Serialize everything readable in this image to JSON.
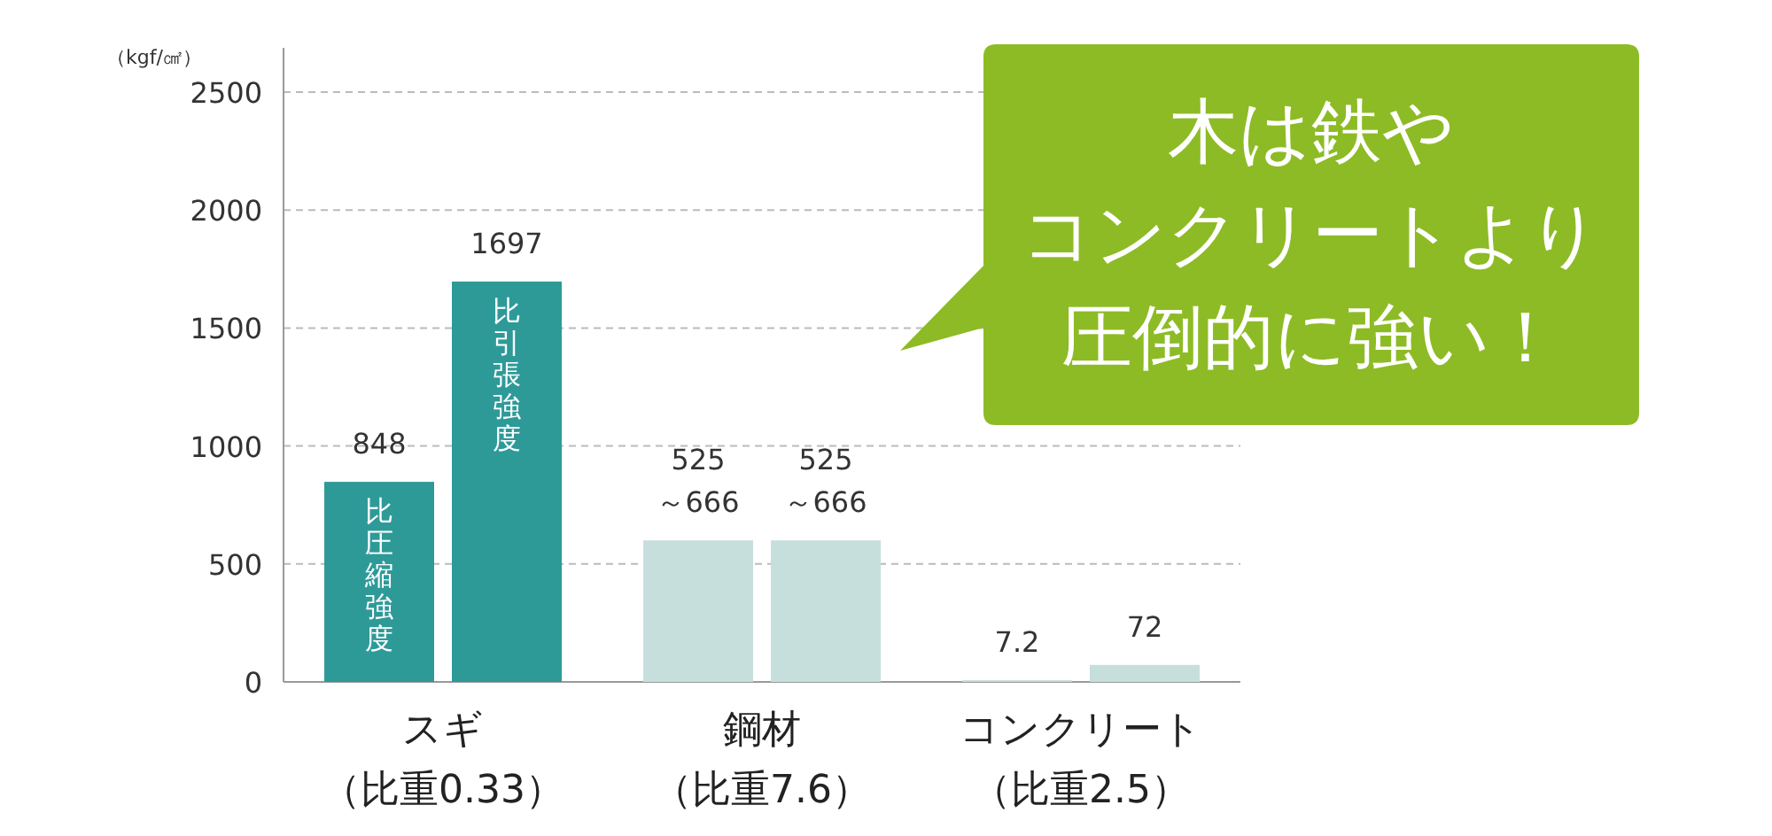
{
  "chart_data": {
    "type": "bar",
    "ylabel": "（kgf/㎠）",
    "categories": [
      "スギ（比重0.33）",
      "鋼材（比重7.6）",
      "コンクリート（比重2.5）"
    ],
    "series": [
      {
        "name": "比圧縮強度",
        "colors": [
          "#2e9a98",
          "#c6dfdc",
          "#c6dfdc"
        ],
        "values": [
          848,
          600,
          7.2
        ],
        "value_labels": [
          "848",
          null,
          "7.2"
        ]
      },
      {
        "name": "比引張強度",
        "colors": [
          "#2e9a98",
          "#c6dfdc",
          "#c6dfdc"
        ],
        "values": [
          1697,
          600,
          72
        ],
        "value_labels": [
          "1697",
          null,
          "72"
        ]
      }
    ],
    "ylim": [
      0,
      2500
    ],
    "yticks": [
      0,
      500,
      1000,
      1500,
      2000,
      2500
    ],
    "grid": "y",
    "annotations": [
      {
        "text": "525～666",
        "x": "鋼材（比重7.6）",
        "y": 600
      },
      {
        "text": "525～666",
        "x": "鋼材（比重7.6）",
        "y": 600
      },
      "木は鉄や",
      "コンクリートより",
      "圧倒的に強い！"
    ]
  }
}
